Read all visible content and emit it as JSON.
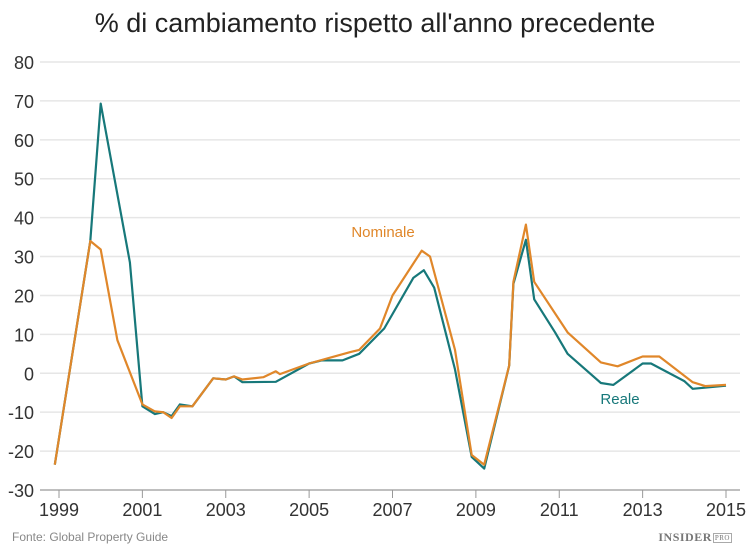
{
  "chart_data": {
    "type": "line",
    "title": "% di cambiamento rispetto all'anno precedente",
    "xlabel": "",
    "ylabel": "",
    "xlim": [
      1998.9,
      2015
    ],
    "ylim": [
      -30,
      80
    ],
    "x_ticks": [
      "1999",
      "2001",
      "2003",
      "2005",
      "2007",
      "2009",
      "2011",
      "2013",
      "2015"
    ],
    "y_ticks": [
      80,
      70,
      60,
      50,
      40,
      30,
      20,
      10,
      0,
      -10,
      -20,
      -30
    ],
    "grid": "horizontal",
    "legend": "inline labels",
    "series": [
      {
        "name": "Nominale",
        "color": "#e0872a",
        "points": [
          [
            1998.9,
            -23.5
          ],
          [
            1999.75,
            34
          ],
          [
            2000,
            31.8
          ],
          [
            2000.4,
            8.5
          ],
          [
            2001,
            -8
          ],
          [
            2001.3,
            -9.8
          ],
          [
            2001.5,
            -10
          ],
          [
            2001.7,
            -11.5
          ],
          [
            2001.9,
            -8.5
          ],
          [
            2002.2,
            -8.5
          ],
          [
            2002.7,
            -1.3
          ],
          [
            2003,
            -1.6
          ],
          [
            2003.2,
            -0.8
          ],
          [
            2003.4,
            -1.6
          ],
          [
            2003.9,
            -1
          ],
          [
            2004.2,
            0.5
          ],
          [
            2004.3,
            -0.2
          ],
          [
            2005,
            2.5
          ],
          [
            2005.5,
            4
          ],
          [
            2006,
            5.5
          ],
          [
            2006.2,
            6
          ],
          [
            2006.7,
            11.5
          ],
          [
            2007,
            20
          ],
          [
            2007.7,
            31.5
          ],
          [
            2007.9,
            30
          ],
          [
            2008.5,
            6
          ],
          [
            2008.9,
            -21
          ],
          [
            2009.2,
            -23.5
          ],
          [
            2009.8,
            2
          ],
          [
            2009.9,
            23.5
          ],
          [
            2010.2,
            38.2
          ],
          [
            2010.4,
            23.5
          ],
          [
            2011.2,
            10.5
          ],
          [
            2012,
            2.8
          ],
          [
            2012.4,
            1.8
          ],
          [
            2013,
            4.3
          ],
          [
            2013.4,
            4.3
          ],
          [
            2014.2,
            -2.3
          ],
          [
            2014.5,
            -3.3
          ],
          [
            2015,
            -3
          ]
        ]
      },
      {
        "name": "Reale",
        "color": "#17787a",
        "points": [
          [
            1998.9,
            -23.5
          ],
          [
            1999.75,
            34
          ],
          [
            2000,
            69.3
          ],
          [
            2000.7,
            28.5
          ],
          [
            2001,
            -8.5
          ],
          [
            2001.3,
            -10.5
          ],
          [
            2001.5,
            -10
          ],
          [
            2001.7,
            -11
          ],
          [
            2001.9,
            -8
          ],
          [
            2002.2,
            -8.5
          ],
          [
            2002.7,
            -1.3
          ],
          [
            2003,
            -1.6
          ],
          [
            2003.2,
            -0.8
          ],
          [
            2003.4,
            -2.3
          ],
          [
            2004.2,
            -2.2
          ],
          [
            2005,
            2.5
          ],
          [
            2005.3,
            3.3
          ],
          [
            2005.8,
            3.3
          ],
          [
            2006.2,
            5
          ],
          [
            2006.8,
            11.5
          ],
          [
            2007.5,
            24.5
          ],
          [
            2007.75,
            26.5
          ],
          [
            2008,
            22
          ],
          [
            2008.5,
            1
          ],
          [
            2008.9,
            -21.5
          ],
          [
            2009.2,
            -24.5
          ],
          [
            2009.8,
            2
          ],
          [
            2009.9,
            23
          ],
          [
            2010.2,
            34.3
          ],
          [
            2010.4,
            19
          ],
          [
            2010.9,
            10.5
          ],
          [
            2011.2,
            5
          ],
          [
            2012,
            -2.5
          ],
          [
            2012.3,
            -3
          ],
          [
            2013,
            2.5
          ],
          [
            2013.2,
            2.5
          ],
          [
            2014,
            -2
          ],
          [
            2014.2,
            -4
          ],
          [
            2015,
            -3.2
          ]
        ]
      }
    ],
    "annotations": [
      {
        "text": "Nominale",
        "series": "Nominale"
      },
      {
        "text": "Reale",
        "series": "Reale"
      }
    ]
  },
  "footer": {
    "source": "Fonte: Global Property Guide",
    "logo": "INSIDER",
    "logo_sub": "PRO"
  }
}
